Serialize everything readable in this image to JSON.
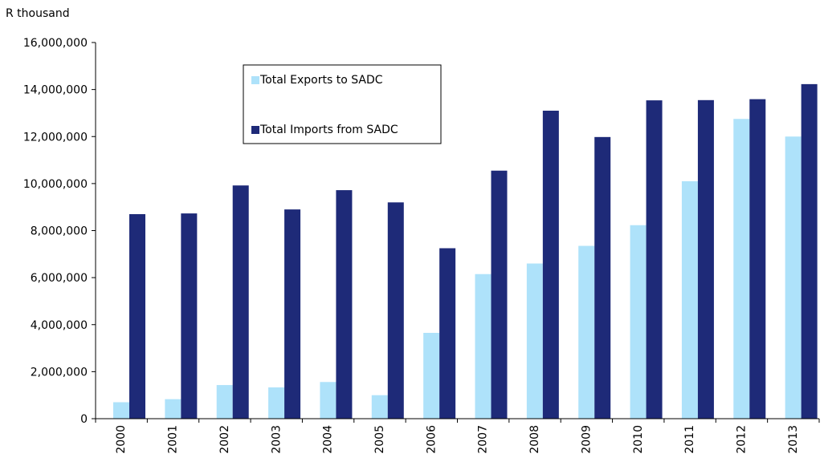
{
  "chart_data": {
    "type": "bar",
    "title": "",
    "xlabel": "",
    "ylabel": "R thousand",
    "ylim": [
      0,
      16000000
    ],
    "y_ticks": [
      "0",
      "2,000,000",
      "4,000,000",
      "6,000,000",
      "8,000,000",
      "10,000,000",
      "12,000,000",
      "14,000,000",
      "16,000,000"
    ],
    "y_tick_values": [
      0,
      2000000,
      4000000,
      6000000,
      8000000,
      10000000,
      12000000,
      14000000,
      16000000
    ],
    "categories": [
      "2000",
      "2001",
      "2002",
      "2003",
      "2004",
      "2005",
      "2006",
      "2007",
      "2008",
      "2009",
      "2010",
      "2011",
      "2012",
      "2013"
    ],
    "grid": false,
    "legend_position": "top-center",
    "series": [
      {
        "name": "Total Exports to SADC",
        "color": "#aee2fa",
        "values": [
          700000,
          830000,
          1430000,
          1330000,
          1560000,
          1000000,
          3650000,
          6150000,
          6600000,
          7350000,
          8230000,
          10100000,
          12750000,
          12000000
        ]
      },
      {
        "name": "Total Imports from SADC",
        "color": "#1e2a78",
        "values": [
          8700000,
          8730000,
          9920000,
          8900000,
          9720000,
          9200000,
          7250000,
          10550000,
          13100000,
          11980000,
          13540000,
          13550000,
          13590000,
          14230000
        ]
      }
    ]
  }
}
